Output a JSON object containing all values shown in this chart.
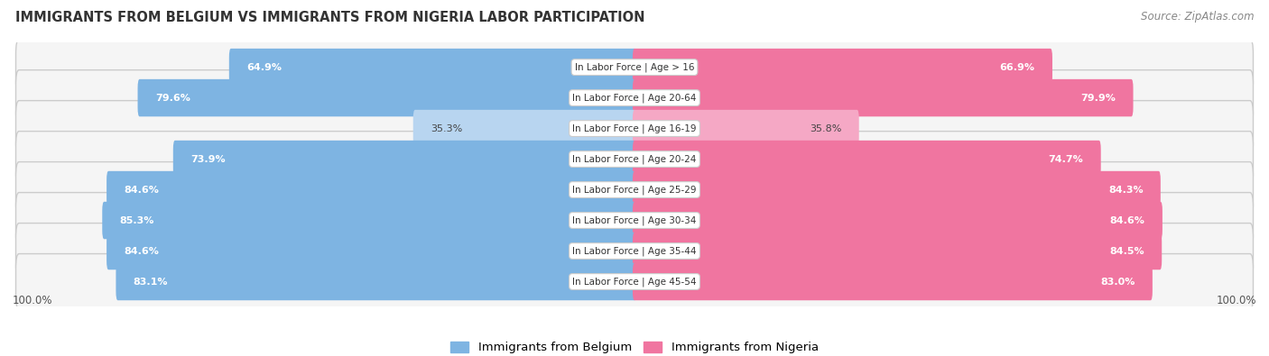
{
  "title": "IMMIGRANTS FROM BELGIUM VS IMMIGRANTS FROM NIGERIA LABOR PARTICIPATION",
  "source": "Source: ZipAtlas.com",
  "categories": [
    "In Labor Force | Age > 16",
    "In Labor Force | Age 20-64",
    "In Labor Force | Age 16-19",
    "In Labor Force | Age 20-24",
    "In Labor Force | Age 25-29",
    "In Labor Force | Age 30-34",
    "In Labor Force | Age 35-44",
    "In Labor Force | Age 45-54"
  ],
  "belgium_values": [
    64.9,
    79.6,
    35.3,
    73.9,
    84.6,
    85.3,
    84.6,
    83.1
  ],
  "nigeria_values": [
    66.9,
    79.9,
    35.8,
    74.7,
    84.3,
    84.6,
    84.5,
    83.0
  ],
  "belgium_color": "#7EB4E2",
  "belgium_color_light": "#B8D5F0",
  "nigeria_color": "#F075A0",
  "nigeria_color_light": "#F5A8C5",
  "row_bg_color": "#F0F0F0",
  "row_border_color": "#DDDDDD",
  "max_value": 100.0,
  "legend_belgium": "Immigrants from Belgium",
  "legend_nigeria": "Immigrants from Nigeria"
}
